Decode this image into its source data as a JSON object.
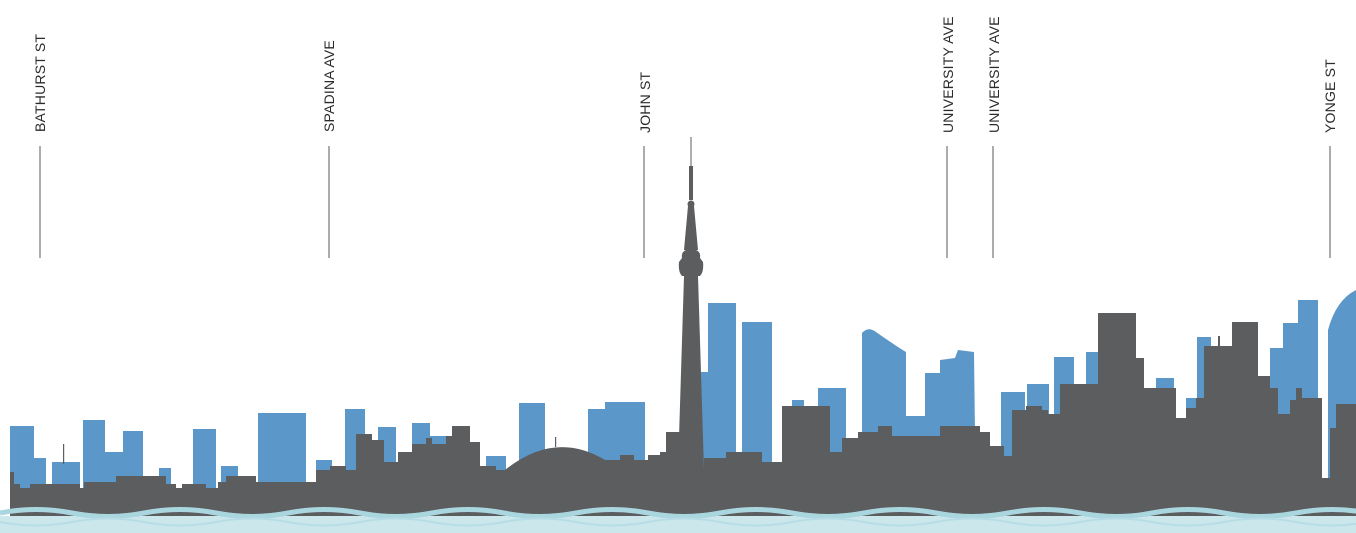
{
  "streets": [
    {
      "id": "bathurst",
      "label": "BATHURST ST"
    },
    {
      "id": "spadina",
      "label": "SPADINA AVE"
    },
    {
      "id": "john",
      "label": "JOHN ST"
    },
    {
      "id": "university-1",
      "label": "UNIVERSITY AVE"
    },
    {
      "id": "university-2",
      "label": "UNIVERSITY AVE"
    },
    {
      "id": "yonge",
      "label": "YONGE ST"
    }
  ],
  "colors": {
    "background": "#ffffff",
    "proposed_buildings": "#5b98c9",
    "existing_skyline": "#5c5d5f",
    "water": "#a9d6df",
    "water_light": "#cbe7ec",
    "leader_line": "#5a5a5a",
    "label_text": "#2b2b2b"
  },
  "icons": {
    "landmark": "cn-tower-icon",
    "stadium": "dome-stadium-icon",
    "water": "wave-icon"
  }
}
